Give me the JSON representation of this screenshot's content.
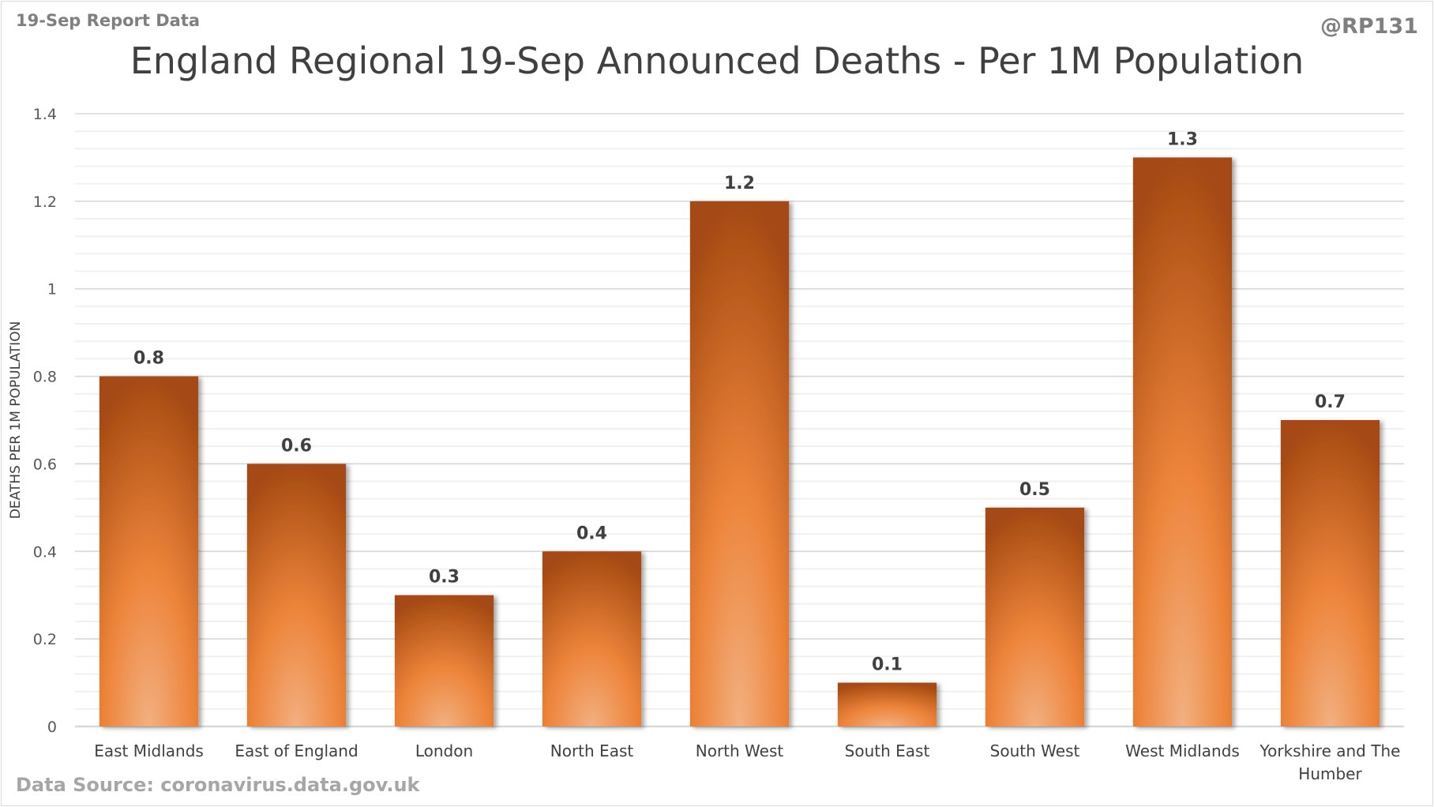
{
  "header": {
    "report_label": "19-Sep Report Data",
    "handle": "@RP131"
  },
  "footer": {
    "source": "Data Source: coronavirus.data.gov.uk"
  },
  "colors": {
    "bar_dark": "#a54a12",
    "bar_mid": "#ed843a",
    "bar_light": "#f2b080",
    "grid": "#d9d9d9",
    "text": "#404040"
  },
  "chart_data": {
    "type": "bar",
    "title": "England Regional 19-Sep Announced Deaths - Per 1M Population",
    "xlabel": "",
    "ylabel": "DEATHS PER 1M POPULATION",
    "ylim": [
      0,
      1.4
    ],
    "yticks": [
      0,
      0.2,
      0.4,
      0.6,
      0.8,
      1,
      1.2,
      1.4
    ],
    "ytick_labels": [
      "0",
      "0.2",
      "0.4",
      "0.6",
      "0.8",
      "1",
      "1.2",
      "1.4"
    ],
    "grid": true,
    "legend": "none",
    "categories": [
      [
        "East Midlands"
      ],
      [
        "East of England"
      ],
      [
        "London"
      ],
      [
        "North East"
      ],
      [
        "North West"
      ],
      [
        "South East"
      ],
      [
        "South West"
      ],
      [
        "West Midlands"
      ],
      [
        "Yorkshire and The",
        "Humber"
      ]
    ],
    "values": [
      0.8,
      0.6,
      0.3,
      0.4,
      1.2,
      0.1,
      0.5,
      1.3,
      0.7
    ],
    "data_labels": [
      "0.8",
      "0.6",
      "0.3",
      "0.4",
      "1.2",
      "0.1",
      "0.5",
      "1.3",
      "0.7"
    ]
  }
}
